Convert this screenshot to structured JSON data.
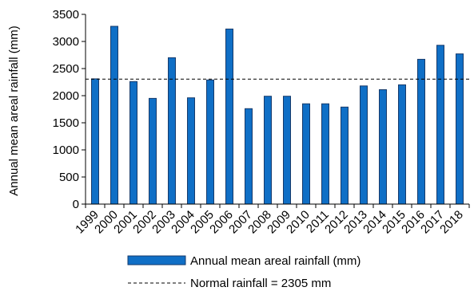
{
  "chart_data": {
    "type": "bar",
    "categories": [
      "1999",
      "2000",
      "2001",
      "2002",
      "2003",
      "2004",
      "2005",
      "2006",
      "2007",
      "2008",
      "2009",
      "2010",
      "2011",
      "2012",
      "2013",
      "2014",
      "2015",
      "2016",
      "2017",
      "2018"
    ],
    "series": [
      {
        "name": "Annual mean areal rainfall (mm)",
        "values": [
          2310,
          3280,
          2260,
          1950,
          2700,
          1960,
          2290,
          3230,
          1760,
          1990,
          1990,
          1850,
          1850,
          1790,
          2180,
          2110,
          2200,
          2670,
          2930,
          2770
        ],
        "color": "#0f6fc6",
        "edge_color": "#163a6b"
      }
    ],
    "reference_line": {
      "label": "Normal rainfall = 2305 mm",
      "value": 2305,
      "style": "dashed"
    },
    "title": "",
    "xlabel": "",
    "ylabel": "Annual mean areal rainfall (mm)",
    "ylim": [
      0,
      3500
    ],
    "yticks": [
      0,
      500,
      1000,
      1500,
      2000,
      2500,
      3000,
      3500
    ],
    "grid": false,
    "legend_position": "bottom"
  }
}
